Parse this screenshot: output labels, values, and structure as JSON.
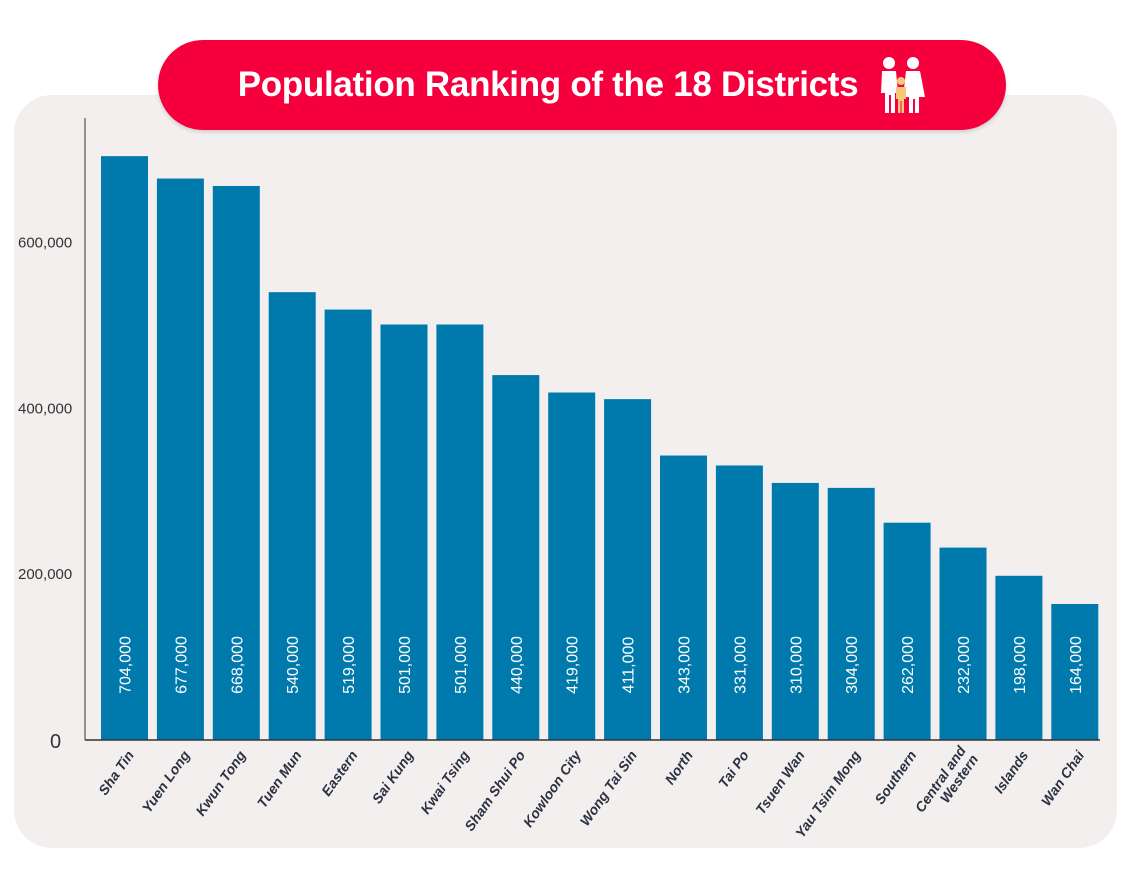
{
  "colors": {
    "bar": "#0079ad",
    "title_bg": "#f5003d",
    "panel": "#f4efef"
  },
  "chart_data": {
    "type": "bar",
    "title": "Population Ranking of the 18 Districts",
    "title_icon": "family-icon",
    "categories": [
      "Sha Tin",
      "Yuen Long",
      "Kwun Tong",
      "Tuen Mun",
      "Eastern",
      "Sai Kung",
      "Kwai Tsing",
      "Sham Shui Po",
      "Kowloon City",
      "Wong Tai Sin",
      "North",
      "Tai Po",
      "Tsuen Wan",
      "Yau Tsim Mong",
      "Southern",
      "Central and Western",
      "Islands",
      "Wan Chai"
    ],
    "values": [
      704000,
      677000,
      668000,
      540000,
      519000,
      501000,
      501000,
      440000,
      419000,
      411000,
      343000,
      331000,
      310000,
      304000,
      262000,
      232000,
      198000,
      164000
    ],
    "data_labels": [
      "704,000",
      "677,000",
      "668,000",
      "540,000",
      "519,000",
      "501,000",
      "501,000",
      "440,000",
      "419,000",
      "411,000",
      "343,000",
      "331,000",
      "310,000",
      "304,000",
      "262,000",
      "232,000",
      "198,000",
      "164,000"
    ],
    "yticks": [
      {
        "value": 0,
        "label": "0"
      },
      {
        "value": 200000,
        "label": "200,000"
      },
      {
        "value": 400000,
        "label": "400,000"
      },
      {
        "value": 600000,
        "label": "600,000"
      }
    ],
    "ylim": [
      0,
      750000
    ],
    "xlabel": "",
    "ylabel": "",
    "grid": false,
    "legend": "none"
  }
}
